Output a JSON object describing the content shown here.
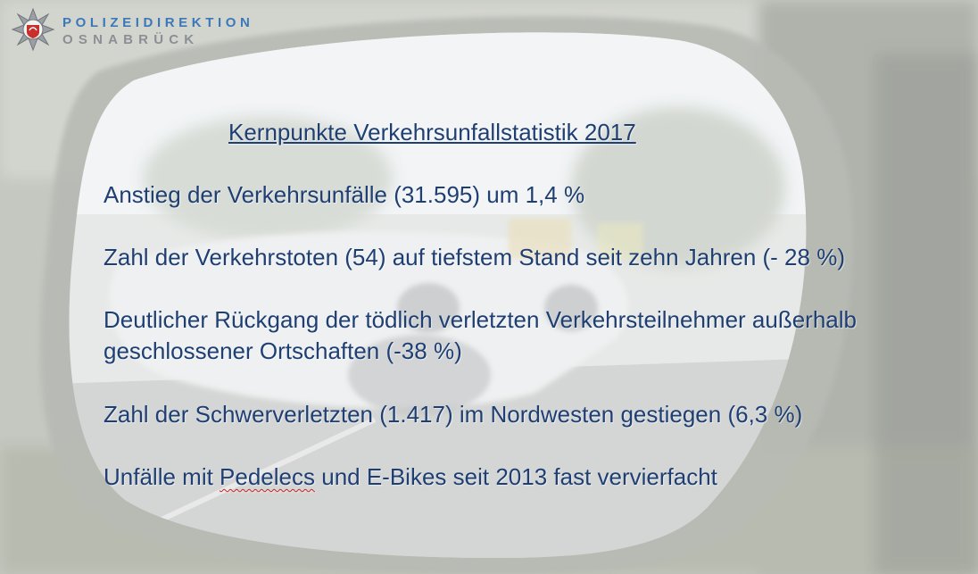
{
  "header": {
    "line1": "POLIZEIDIREKTION",
    "line2": "OSNABRÜCK",
    "logo_icon": "police-star-emblem-icon",
    "brand_color": "#3c78b8"
  },
  "slide": {
    "title": "Kernpunkte Verkehrsunfallstatistik 2017",
    "points": [
      "Anstieg der Verkehrsunfälle (31.595) um 1,4 %",
      "Zahl der Verkehrstoten (54) auf tiefstem Stand seit zehn Jahren (- 28 %)",
      "Deutlicher Rückgang der tödlich verletzten Verkehrsteilnehmer außerhalb",
      "geschlossener Ortschaften (-38 %)",
      "Zahl der Schwerverletzten (1.417) im Nordwesten gestiegen (6,3 %)"
    ],
    "point5_before": "Unfälle mit ",
    "point5_flagged": "Pedelecs",
    "point5_after": " und E-Bikes seit 2013 fast vervierfacht",
    "text_color": "#1f3f73"
  }
}
